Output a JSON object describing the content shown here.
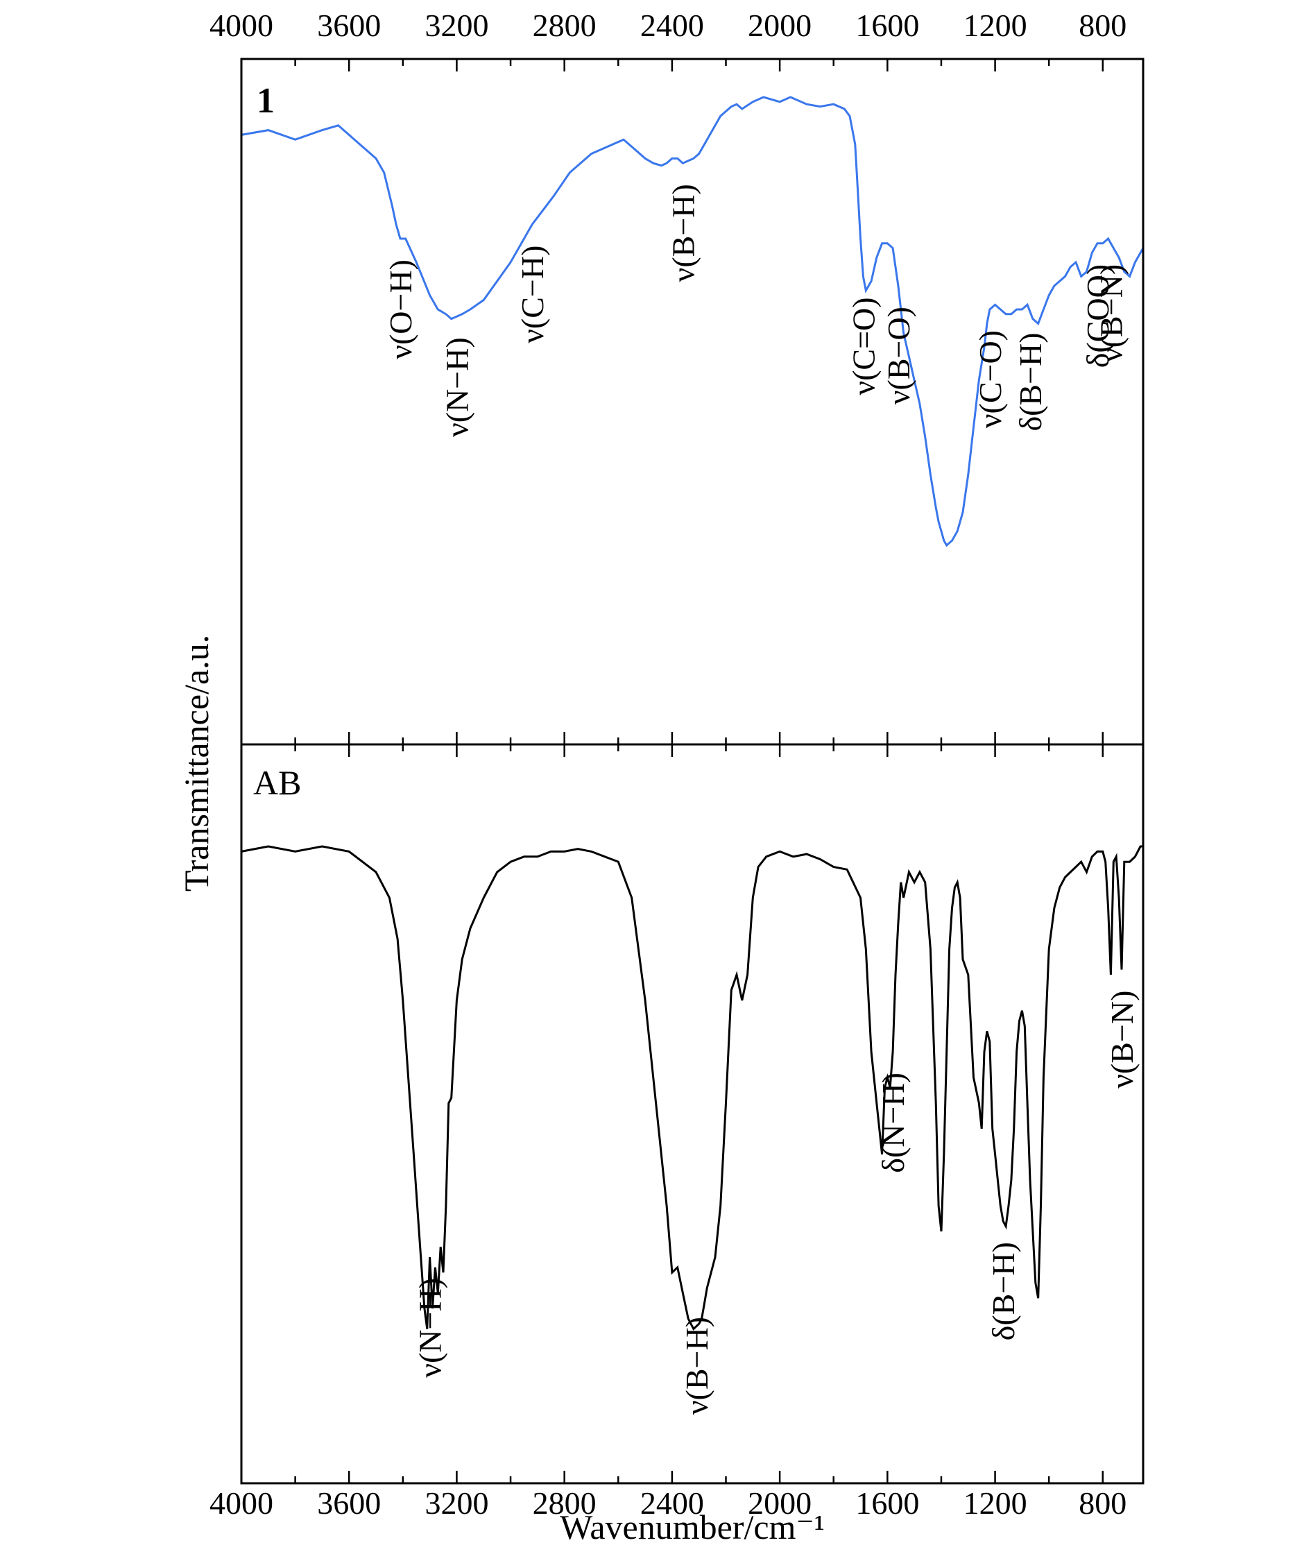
{
  "chart_data": [
    {
      "type": "line",
      "panel_label": "1",
      "series_color": "#3a77ec",
      "x_reversed": true,
      "xlim": [
        4000,
        650
      ],
      "xticks": [
        4000,
        3600,
        3200,
        2800,
        2400,
        2000,
        1600,
        1200,
        800
      ],
      "series": [
        {
          "x": [
            4000,
            3900,
            3800,
            3700,
            3640,
            3560,
            3500,
            3470,
            3440,
            3425,
            3410,
            3390,
            3350,
            3300,
            3270,
            3240,
            3220,
            3200,
            3180,
            3150,
            3100,
            3050,
            3000,
            2950,
            2920,
            2880,
            2840,
            2780,
            2700,
            2620,
            2580,
            2540,
            2500,
            2470,
            2440,
            2420,
            2400,
            2380,
            2360,
            2340,
            2320,
            2300,
            2280,
            2250,
            2220,
            2180,
            2160,
            2140,
            2100,
            2060,
            2000,
            1960,
            1900,
            1850,
            1800,
            1760,
            1740,
            1720,
            1710,
            1700,
            1690,
            1680,
            1660,
            1640,
            1620,
            1600,
            1580,
            1560,
            1540,
            1520,
            1500,
            1480,
            1460,
            1440,
            1420,
            1410,
            1400,
            1390,
            1380,
            1360,
            1340,
            1320,
            1300,
            1280,
            1260,
            1240,
            1230,
            1220,
            1200,
            1180,
            1160,
            1140,
            1120,
            1100,
            1080,
            1060,
            1040,
            1020,
            1000,
            980,
            960,
            940,
            920,
            900,
            880,
            860,
            840,
            820,
            800,
            780,
            760,
            740,
            720,
            700,
            680,
            660,
            650
          ],
          "y": [
            0.92,
            0.93,
            0.91,
            0.93,
            0.94,
            0.9,
            0.87,
            0.84,
            0.77,
            0.73,
            0.7,
            0.7,
            0.65,
            0.58,
            0.55,
            0.54,
            0.53,
            0.535,
            0.54,
            0.55,
            0.57,
            0.61,
            0.65,
            0.7,
            0.73,
            0.76,
            0.79,
            0.84,
            0.88,
            0.9,
            0.91,
            0.89,
            0.87,
            0.86,
            0.855,
            0.86,
            0.87,
            0.87,
            0.86,
            0.865,
            0.87,
            0.88,
            0.9,
            0.93,
            0.96,
            0.98,
            0.985,
            0.975,
            0.99,
            1.0,
            0.99,
            1.0,
            0.985,
            0.98,
            0.985,
            0.975,
            0.96,
            0.9,
            0.8,
            0.7,
            0.62,
            0.59,
            0.61,
            0.66,
            0.69,
            0.69,
            0.68,
            0.6,
            0.5,
            0.45,
            0.4,
            0.35,
            0.28,
            0.2,
            0.13,
            0.1,
            0.08,
            0.06,
            0.05,
            0.06,
            0.08,
            0.12,
            0.2,
            0.3,
            0.4,
            0.47,
            0.52,
            0.55,
            0.56,
            0.55,
            0.54,
            0.54,
            0.55,
            0.55,
            0.56,
            0.53,
            0.52,
            0.55,
            0.58,
            0.6,
            0.61,
            0.62,
            0.64,
            0.65,
            0.62,
            0.63,
            0.67,
            0.69,
            0.69,
            0.7,
            0.68,
            0.66,
            0.63,
            0.62,
            0.65,
            0.67,
            0.68
          ]
        }
      ],
      "annotations": [
        {
          "text": "ν(O−H)",
          "x": 3410,
          "rotation": -90
        },
        {
          "text": "ν(N−H)",
          "x": 3200,
          "rotation": -90
        },
        {
          "text": "ν(C−H)",
          "x": 2920,
          "rotation": -90
        },
        {
          "text": "ν(B−H)",
          "x": 2360,
          "rotation": -90
        },
        {
          "text": "ν(C=O)",
          "x": 1690,
          "rotation": -90
        },
        {
          "text": "ν(B−O)",
          "x": 1560,
          "rotation": -90
        },
        {
          "text": "ν(C−O)",
          "x": 1220,
          "rotation": -90
        },
        {
          "text": "δ(B−H)",
          "x": 1070,
          "rotation": -90
        },
        {
          "text": "δ(COO)",
          "x": 820,
          "rotation": -90
        },
        {
          "text": "ν(B−N)",
          "x": 770,
          "rotation": -90
        }
      ]
    },
    {
      "type": "line",
      "panel_label": "AB",
      "series_color": "#000000",
      "x_reversed": true,
      "xlim": [
        4000,
        650
      ],
      "xticks": [
        4000,
        3600,
        3200,
        2800,
        2400,
        2000,
        1600,
        1200,
        800
      ],
      "xlabel": "Wavenumber/cm⁻¹",
      "series": [
        {
          "x": [
            4000,
            3900,
            3800,
            3700,
            3600,
            3550,
            3500,
            3450,
            3420,
            3400,
            3380,
            3360,
            3340,
            3320,
            3310,
            3300,
            3290,
            3280,
            3270,
            3260,
            3250,
            3240,
            3230,
            3220,
            3200,
            3180,
            3150,
            3100,
            3050,
            3000,
            2950,
            2900,
            2850,
            2800,
            2750,
            2700,
            2650,
            2600,
            2550,
            2500,
            2450,
            2420,
            2400,
            2380,
            2360,
            2340,
            2320,
            2310,
            2300,
            2290,
            2280,
            2270,
            2260,
            2240,
            2220,
            2200,
            2180,
            2160,
            2140,
            2120,
            2100,
            2080,
            2050,
            2000,
            1950,
            1900,
            1850,
            1800,
            1750,
            1700,
            1680,
            1660,
            1640,
            1620,
            1610,
            1600,
            1590,
            1580,
            1570,
            1560,
            1550,
            1540,
            1520,
            1500,
            1480,
            1460,
            1440,
            1420,
            1410,
            1400,
            1390,
            1380,
            1370,
            1360,
            1350,
            1340,
            1330,
            1320,
            1300,
            1280,
            1260,
            1250,
            1240,
            1230,
            1220,
            1210,
            1200,
            1190,
            1180,
            1170,
            1160,
            1150,
            1140,
            1130,
            1120,
            1110,
            1100,
            1090,
            1080,
            1070,
            1060,
            1050,
            1040,
            1030,
            1020,
            1000,
            980,
            960,
            940,
            920,
            900,
            880,
            860,
            840,
            820,
            800,
            790,
            780,
            770,
            760,
            750,
            740,
            730,
            720,
            700,
            680,
            660,
            650
          ],
          "y": [
            0.99,
            1.0,
            0.99,
            1.0,
            0.99,
            0.97,
            0.95,
            0.9,
            0.82,
            0.7,
            0.55,
            0.4,
            0.25,
            0.1,
            0.06,
            0.2,
            0.1,
            0.18,
            0.13,
            0.22,
            0.17,
            0.3,
            0.5,
            0.51,
            0.7,
            0.78,
            0.84,
            0.9,
            0.95,
            0.97,
            0.98,
            0.98,
            0.99,
            0.99,
            0.995,
            0.99,
            0.98,
            0.97,
            0.9,
            0.7,
            0.45,
            0.3,
            0.17,
            0.18,
            0.13,
            0.08,
            0.06,
            0.065,
            0.07,
            0.08,
            0.11,
            0.14,
            0.16,
            0.2,
            0.3,
            0.5,
            0.72,
            0.75,
            0.7,
            0.75,
            0.9,
            0.96,
            0.98,
            0.99,
            0.98,
            0.985,
            0.975,
            0.96,
            0.955,
            0.9,
            0.8,
            0.6,
            0.5,
            0.4,
            0.53,
            0.55,
            0.53,
            0.6,
            0.75,
            0.85,
            0.93,
            0.9,
            0.95,
            0.93,
            0.95,
            0.93,
            0.8,
            0.5,
            0.3,
            0.25,
            0.4,
            0.6,
            0.8,
            0.88,
            0.92,
            0.93,
            0.9,
            0.78,
            0.75,
            0.55,
            0.5,
            0.45,
            0.6,
            0.64,
            0.62,
            0.45,
            0.4,
            0.35,
            0.3,
            0.27,
            0.26,
            0.3,
            0.35,
            0.45,
            0.6,
            0.66,
            0.68,
            0.65,
            0.5,
            0.35,
            0.25,
            0.15,
            0.12,
            0.3,
            0.55,
            0.8,
            0.88,
            0.92,
            0.94,
            0.95,
            0.96,
            0.97,
            0.95,
            0.98,
            0.99,
            0.99,
            0.97,
            0.88,
            0.75,
            0.97,
            0.98,
            0.9,
            0.76,
            0.97,
            0.97,
            0.98,
            1.0,
            1.0
          ],
          "y_note": "relative scale, higher = more transmittance"
        }
      ],
      "annotations": [
        {
          "text": "ν(N−H)",
          "x": 3300,
          "rotation": -90
        },
        {
          "text": "ν(B−H)",
          "x": 2310,
          "rotation": -90
        },
        {
          "text": "δ(N−H)",
          "x": 1580,
          "rotation": -90
        },
        {
          "text": "δ(B−H)",
          "x": 1170,
          "rotation": -90
        },
        {
          "text": "ν(B−N)",
          "x": 730,
          "rotation": -90
        }
      ]
    }
  ],
  "ylabel": "Transmittance/a.u.",
  "grid": false,
  "legend": "none"
}
